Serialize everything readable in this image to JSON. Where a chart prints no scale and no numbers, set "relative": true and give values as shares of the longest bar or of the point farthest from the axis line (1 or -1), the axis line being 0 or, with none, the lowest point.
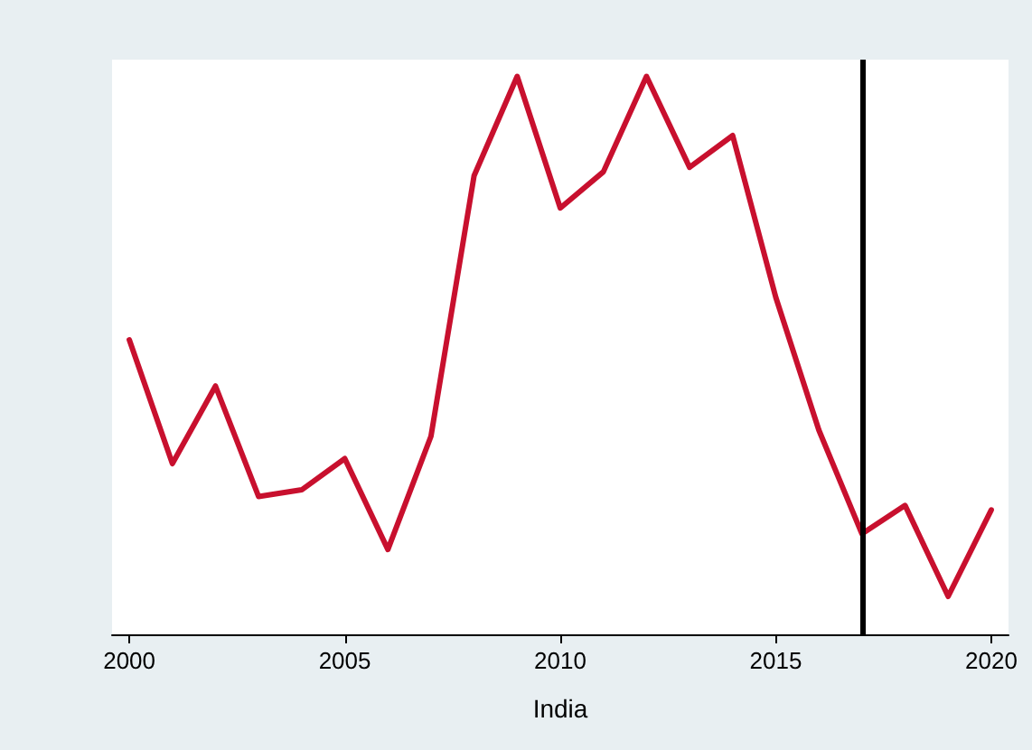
{
  "chart_data": {
    "type": "line",
    "xlabel": "India",
    "relative": true,
    "x": [
      2000,
      2001,
      2002,
      2003,
      2004,
      2005,
      2006,
      2007,
      2008,
      2009,
      2010,
      2011,
      2012,
      2013,
      2014,
      2015,
      2016,
      2017,
      2018,
      2019,
      2020
    ],
    "series": [
      {
        "color": "#c8102e",
        "values": [
          0.528,
          0.306,
          0.445,
          0.247,
          0.259,
          0.315,
          0.152,
          0.355,
          0.822,
          1.0,
          0.764,
          0.829,
          1.0,
          0.837,
          0.894,
          0.604,
          0.366,
          0.18,
          0.231,
          0.068,
          0.223
        ]
      }
    ],
    "xlim": [
      1999.6,
      2020.4
    ],
    "xticks": [
      2000,
      2005,
      2010,
      2015,
      2020
    ],
    "ref_lines": [
      {
        "axis": "x",
        "value": 2017,
        "color": "#000000"
      }
    ],
    "grid": false,
    "marker": "none",
    "line_style": "solid"
  }
}
